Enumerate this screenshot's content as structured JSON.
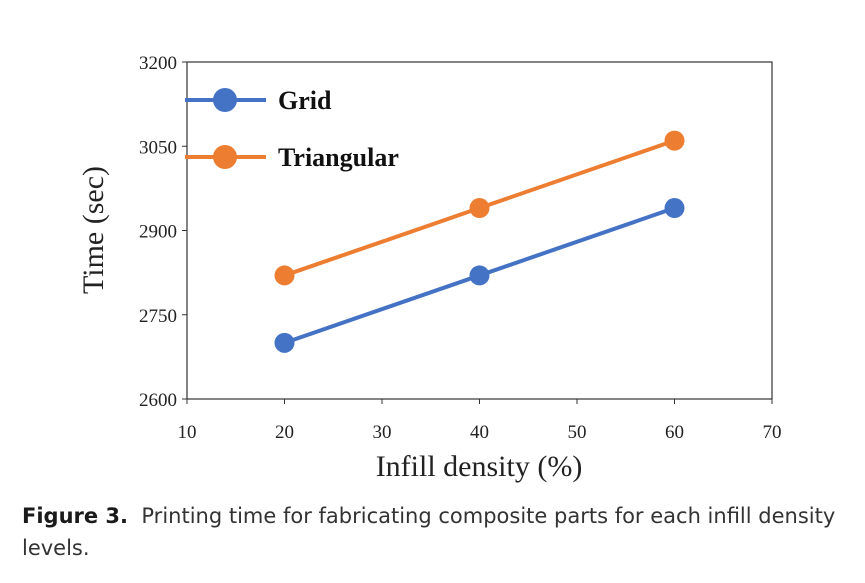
{
  "chart_data": {
    "type": "line",
    "title": "",
    "xlabel": "Infill density (%)",
    "ylabel": "Time (sec)",
    "xlim": [
      10,
      70
    ],
    "ylim": [
      2600,
      3200
    ],
    "xticks": [
      10,
      20,
      30,
      40,
      50,
      60,
      70
    ],
    "yticks": [
      2600,
      2750,
      2900,
      3050,
      3200
    ],
    "x": [
      20,
      40,
      60
    ],
    "series": [
      {
        "name": "Grid",
        "values": [
          2700,
          2820,
          2940
        ],
        "color": "#4472C4"
      },
      {
        "name": "Triangular",
        "values": [
          2820,
          2940,
          3060
        ],
        "color": "#ED7D31"
      }
    ],
    "legend_position": "top-left",
    "grid": false
  },
  "caption": {
    "label": "Figure 3.",
    "text": "Printing time for fabricating composite parts for each infill density levels."
  }
}
